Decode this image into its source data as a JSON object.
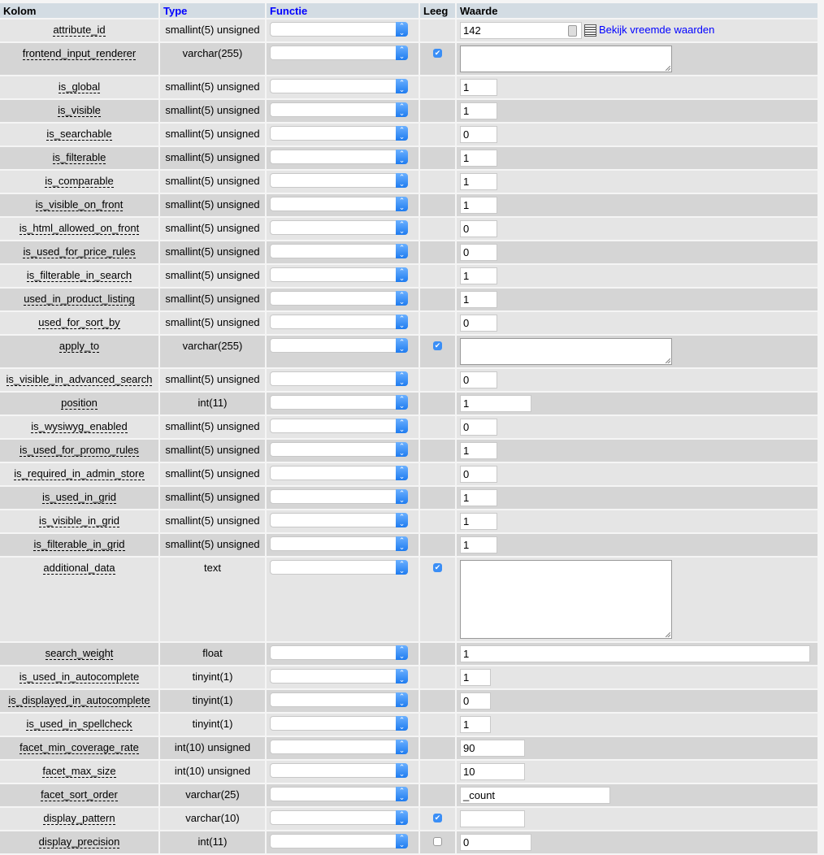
{
  "header": {
    "kolom": "Kolom",
    "type": "Type",
    "functie": "Functie",
    "leeg": "Leeg",
    "waarde": "Waarde"
  },
  "foreign_link": "Bekijk vreemde waarden",
  "colors": {
    "header_bg": "#d3dce3",
    "row_odd": "#e5e5e5",
    "row_even": "#d5d5d5",
    "link": "#0000ff",
    "checkbox": "#3a8ef6"
  },
  "rows": [
    {
      "column": "attribute_id",
      "type": "smallint(5) unsigned",
      "null": null,
      "value": "142",
      "foreign": true
    },
    {
      "column": "frontend_input_renderer",
      "type": "varchar(255)",
      "null": "checked",
      "value": ""
    },
    {
      "column": "is_global",
      "type": "smallint(5) unsigned",
      "null": null,
      "value": "1"
    },
    {
      "column": "is_visible",
      "type": "smallint(5) unsigned",
      "null": null,
      "value": "1"
    },
    {
      "column": "is_searchable",
      "type": "smallint(5) unsigned",
      "null": null,
      "value": "0"
    },
    {
      "column": "is_filterable",
      "type": "smallint(5) unsigned",
      "null": null,
      "value": "1"
    },
    {
      "column": "is_comparable",
      "type": "smallint(5) unsigned",
      "null": null,
      "value": "1"
    },
    {
      "column": "is_visible_on_front",
      "type": "smallint(5) unsigned",
      "null": null,
      "value": "1"
    },
    {
      "column": "is_html_allowed_on_front",
      "type": "smallint(5) unsigned",
      "null": null,
      "value": "0"
    },
    {
      "column": "is_used_for_price_rules",
      "type": "smallint(5) unsigned",
      "null": null,
      "value": "0"
    },
    {
      "column": "is_filterable_in_search",
      "type": "smallint(5) unsigned",
      "null": null,
      "value": "1"
    },
    {
      "column": "used_in_product_listing",
      "type": "smallint(5) unsigned",
      "null": null,
      "value": "1"
    },
    {
      "column": "used_for_sort_by",
      "type": "smallint(5) unsigned",
      "null": null,
      "value": "0"
    },
    {
      "column": "apply_to",
      "type": "varchar(255)",
      "null": "checked",
      "value": ""
    },
    {
      "column": "is_visible_in_advanced_search",
      "type": "smallint(5) unsigned",
      "null": null,
      "value": "0"
    },
    {
      "column": "position",
      "type": "int(11)",
      "null": null,
      "value": "1"
    },
    {
      "column": "is_wysiwyg_enabled",
      "type": "smallint(5) unsigned",
      "null": null,
      "value": "0"
    },
    {
      "column": "is_used_for_promo_rules",
      "type": "smallint(5) unsigned",
      "null": null,
      "value": "1"
    },
    {
      "column": "is_required_in_admin_store",
      "type": "smallint(5) unsigned",
      "null": null,
      "value": "0"
    },
    {
      "column": "is_used_in_grid",
      "type": "smallint(5) unsigned",
      "null": null,
      "value": "1"
    },
    {
      "column": "is_visible_in_grid",
      "type": "smallint(5) unsigned",
      "null": null,
      "value": "1"
    },
    {
      "column": "is_filterable_in_grid",
      "type": "smallint(5) unsigned",
      "null": null,
      "value": "1"
    },
    {
      "column": "additional_data",
      "type": "text",
      "null": "checked",
      "value": ""
    },
    {
      "column": "search_weight",
      "type": "float",
      "null": null,
      "value": "1"
    },
    {
      "column": "is_used_in_autocomplete",
      "type": "tinyint(1)",
      "null": null,
      "value": "1"
    },
    {
      "column": "is_displayed_in_autocomplete",
      "type": "tinyint(1)",
      "null": null,
      "value": "0"
    },
    {
      "column": "is_used_in_spellcheck",
      "type": "tinyint(1)",
      "null": null,
      "value": "1"
    },
    {
      "column": "facet_min_coverage_rate",
      "type": "int(10) unsigned",
      "null": null,
      "value": "90"
    },
    {
      "column": "facet_max_size",
      "type": "int(10) unsigned",
      "null": null,
      "value": "10"
    },
    {
      "column": "facet_sort_order",
      "type": "varchar(25)",
      "null": null,
      "value": "_count"
    },
    {
      "column": "display_pattern",
      "type": "varchar(10)",
      "null": "checked",
      "value": ""
    },
    {
      "column": "display_precision",
      "type": "int(11)",
      "null": "unchecked",
      "value": "0"
    }
  ]
}
